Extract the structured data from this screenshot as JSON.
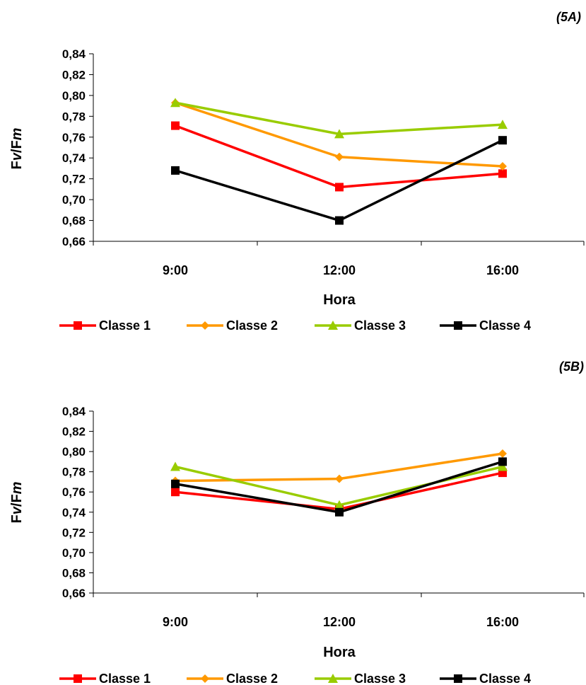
{
  "chart_data": [
    {
      "type": "line",
      "panel_label": "(5A)",
      "categories": [
        "9:00",
        "12:00",
        "16:00"
      ],
      "ylabel": {
        "prefix": "F",
        "sub1": "v",
        "sep": "/F",
        "sub2": "m"
      },
      "xlabel": "Hora",
      "ylim": [
        0.66,
        0.84
      ],
      "yticks": [
        "0,66",
        "0,68",
        "0,70",
        "0,72",
        "0,74",
        "0,76",
        "0,78",
        "0,80",
        "0,82",
        "0,84"
      ],
      "grid": false,
      "legend_position": "bottom",
      "series": [
        {
          "name": "Classe 1",
          "marker": "square",
          "color": "#ff0000",
          "values": [
            0.771,
            0.712,
            0.725
          ]
        },
        {
          "name": "Classe 2",
          "marker": "diamond",
          "color": "#ff9900",
          "values": [
            0.793,
            0.741,
            0.732
          ]
        },
        {
          "name": "Classe 3",
          "marker": "triangle",
          "color": "#99cc00",
          "values": [
            0.793,
            0.763,
            0.772
          ]
        },
        {
          "name": "Classe 4",
          "marker": "square",
          "color": "#000000",
          "values": [
            0.728,
            0.68,
            0.757
          ]
        }
      ]
    },
    {
      "type": "line",
      "panel_label": "(5B)",
      "categories": [
        "9:00",
        "12:00",
        "16:00"
      ],
      "ylabel": {
        "prefix": "F",
        "sub1": "v",
        "sep": "/F",
        "sub2": "m"
      },
      "xlabel": "Hora",
      "ylim": [
        0.66,
        0.84
      ],
      "yticks": [
        "0,66",
        "0,68",
        "0,70",
        "0,72",
        "0,74",
        "0,76",
        "0,78",
        "0,80",
        "0,82",
        "0,84"
      ],
      "grid": false,
      "legend_position": "bottom",
      "series": [
        {
          "name": "Classe 1",
          "marker": "square",
          "color": "#ff0000",
          "values": [
            0.76,
            0.743,
            0.779
          ]
        },
        {
          "name": "Classe 2",
          "marker": "diamond",
          "color": "#ff9900",
          "values": [
            0.771,
            0.773,
            0.798
          ]
        },
        {
          "name": "Classe 3",
          "marker": "triangle",
          "color": "#99cc00",
          "values": [
            0.785,
            0.747,
            0.785
          ]
        },
        {
          "name": "Classe 4",
          "marker": "square",
          "color": "#000000",
          "values": [
            0.768,
            0.74,
            0.79
          ]
        }
      ]
    }
  ]
}
